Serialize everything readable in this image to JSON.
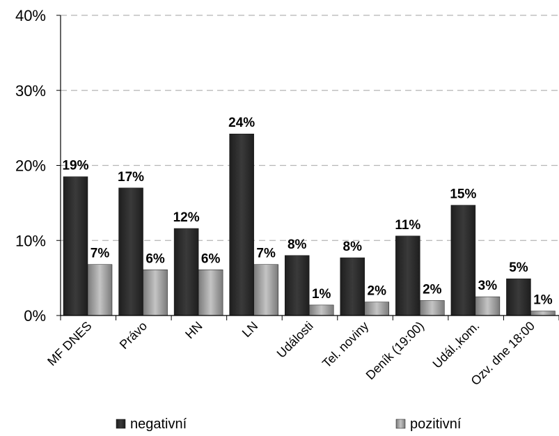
{
  "chart_data": {
    "type": "bar",
    "categories": [
      "MF DNES",
      "Právo",
      "HN",
      "LN",
      "Události",
      "Tel. noviny",
      "Deník (19:00)",
      "Udál.,kom.",
      "Ozv. dne 18:00"
    ],
    "series": [
      {
        "name": "negativní",
        "values": [
          18.5,
          17.0,
          11.6,
          24.2,
          8.0,
          7.7,
          10.6,
          14.7,
          4.9
        ],
        "labels": [
          "19%",
          "17%",
          "12%",
          "24%",
          "8%",
          "8%",
          "11%",
          "15%",
          "5%"
        ],
        "color": "#2d2d2d"
      },
      {
        "name": "pozitivní",
        "values": [
          6.8,
          6.1,
          6.1,
          6.8,
          1.4,
          1.8,
          2.0,
          2.5,
          0.6
        ],
        "labels": [
          "7%",
          "6%",
          "6%",
          "7%",
          "1%",
          "2%",
          "2%",
          "3%",
          "1%"
        ],
        "color": "#9a9a9a"
      }
    ],
    "yticks": [
      "0%",
      "10%",
      "20%",
      "30%",
      "40%"
    ],
    "ylim": [
      0,
      40
    ],
    "grid": true,
    "legend": "bottom"
  }
}
